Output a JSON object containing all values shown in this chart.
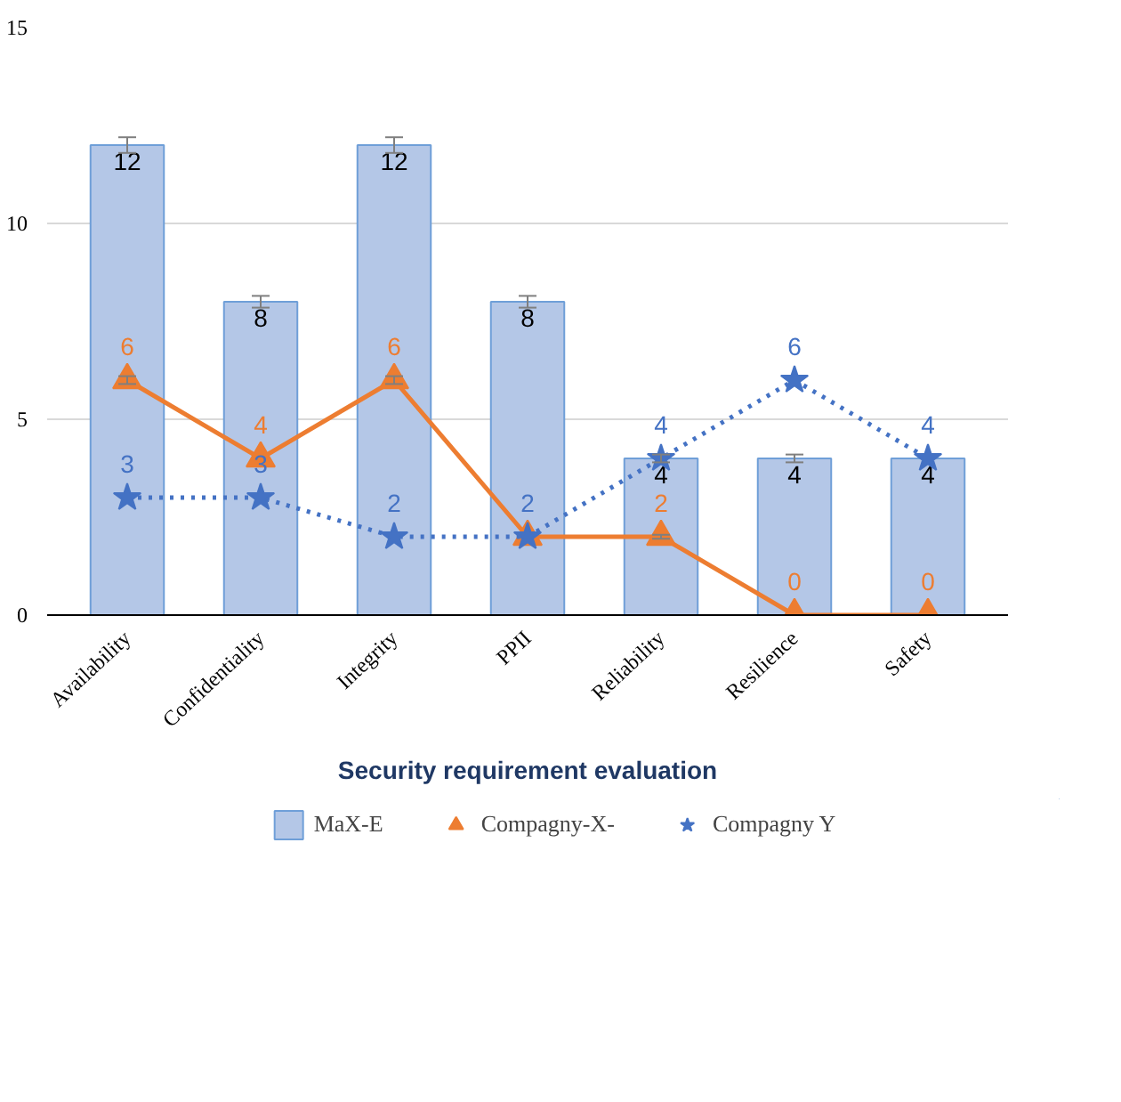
{
  "chart_data": {
    "type": "bar",
    "categories": [
      "Availability",
      "Confidentiality",
      "Integrity",
      "PPII",
      "Reliability",
      "Resilience",
      "Safety"
    ],
    "xlabel": "Security requirement evaluation",
    "ylim": [
      0,
      15
    ],
    "yticks": [
      0,
      5,
      10,
      15
    ],
    "grid": "y",
    "legend": "bottom",
    "data_labels": true,
    "series": [
      {
        "name": "MaX-E",
        "color": "#b4c7e7",
        "values": [
          12,
          8,
          12,
          8,
          4,
          4,
          4
        ],
        "errors": [
          0.2,
          0.15,
          0.2,
          0.15,
          0.1,
          0.1,
          null
        ]
      },
      {
        "name": "Compagny-X-",
        "type": "line",
        "color": "#ed7d31",
        "marker": "triangle",
        "line_style": "solid",
        "values": [
          6,
          4,
          6,
          2,
          2,
          0,
          0
        ],
        "errors": [
          0.1,
          null,
          0.1,
          null,
          0.05,
          null,
          null
        ],
        "value_labels": [
          "6",
          "4",
          "6",
          null,
          "2",
          "0",
          "0"
        ]
      },
      {
        "name": "Compagny Y",
        "type": "line",
        "color": "#4472c4",
        "marker": "star",
        "line_style": "dotted",
        "values": [
          3,
          3,
          2,
          2,
          4,
          6,
          4
        ]
      }
    ]
  }
}
